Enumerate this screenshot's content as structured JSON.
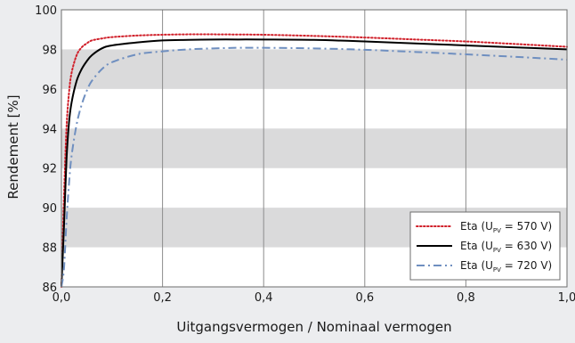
{
  "chart_data": {
    "type": "line",
    "title": "",
    "xlabel": "Uitgangsvermogen / Nominaal vermogen",
    "ylabel": "Rendement [%]",
    "xlim": [
      0.0,
      1.0
    ],
    "ylim": [
      86,
      100
    ],
    "x_ticks": [
      0.0,
      0.2,
      0.4,
      0.6,
      0.8,
      1.0
    ],
    "x_tick_labels": [
      "0,0",
      "0,2",
      "0,4",
      "0,6",
      "0,8",
      "1,0"
    ],
    "y_ticks": [
      86,
      88,
      90,
      92,
      94,
      96,
      98,
      100
    ],
    "y_tick_labels": [
      "86",
      "88",
      "90",
      "92",
      "94",
      "96",
      "98",
      "100"
    ],
    "background_bands": [
      [
        88,
        90
      ],
      [
        92,
        94
      ],
      [
        96,
        98
      ]
    ],
    "grid": {
      "vertical": true,
      "horizontal": false
    },
    "legend_position": "bottom-right",
    "series": [
      {
        "legend_prefix": "Eta (U",
        "legend_sub": "PV",
        "legend_suffix": " = 570 V)",
        "color": "#d0202a",
        "style": "dotted",
        "x": [
          0.0,
          0.005,
          0.01,
          0.015,
          0.02,
          0.03,
          0.04,
          0.05,
          0.06,
          0.08,
          0.1,
          0.15,
          0.2,
          0.25,
          0.3,
          0.35,
          0.4,
          0.5,
          0.6,
          0.7,
          0.8,
          0.9,
          1.0
        ],
        "y": [
          86.0,
          90.5,
          94.0,
          95.8,
          96.8,
          97.7,
          98.1,
          98.3,
          98.45,
          98.55,
          98.62,
          98.7,
          98.74,
          98.76,
          98.76,
          98.75,
          98.74,
          98.68,
          98.6,
          98.5,
          98.4,
          98.27,
          98.13
        ]
      },
      {
        "legend_prefix": "Eta (U",
        "legend_sub": "PV",
        "legend_suffix": " = 630 V)",
        "color": "#000000",
        "style": "solid",
        "x": [
          0.0,
          0.005,
          0.01,
          0.015,
          0.02,
          0.03,
          0.04,
          0.05,
          0.06,
          0.08,
          0.1,
          0.15,
          0.2,
          0.25,
          0.3,
          0.35,
          0.4,
          0.5,
          0.6,
          0.7,
          0.8,
          0.9,
          1.0
        ],
        "y": [
          86.0,
          89.0,
          92.4,
          94.3,
          95.3,
          96.4,
          97.0,
          97.4,
          97.7,
          98.05,
          98.2,
          98.35,
          98.45,
          98.48,
          98.5,
          98.5,
          98.5,
          98.48,
          98.4,
          98.3,
          98.2,
          98.1,
          98.0
        ]
      },
      {
        "legend_prefix": "Eta (U",
        "legend_sub": "PV",
        "legend_suffix": " = 720 V)",
        "color": "#6f8fc0",
        "style": "dashdot",
        "x": [
          0.0,
          0.005,
          0.01,
          0.015,
          0.02,
          0.03,
          0.04,
          0.05,
          0.06,
          0.08,
          0.1,
          0.15,
          0.2,
          0.25,
          0.3,
          0.35,
          0.4,
          0.5,
          0.6,
          0.7,
          0.8,
          0.9,
          1.0
        ],
        "y": [
          86.0,
          86.9,
          89.3,
          91.2,
          92.6,
          94.2,
          95.2,
          95.9,
          96.4,
          97.0,
          97.35,
          97.75,
          97.9,
          98.0,
          98.05,
          98.08,
          98.08,
          98.05,
          97.98,
          97.87,
          97.75,
          97.62,
          97.48
        ]
      }
    ]
  }
}
